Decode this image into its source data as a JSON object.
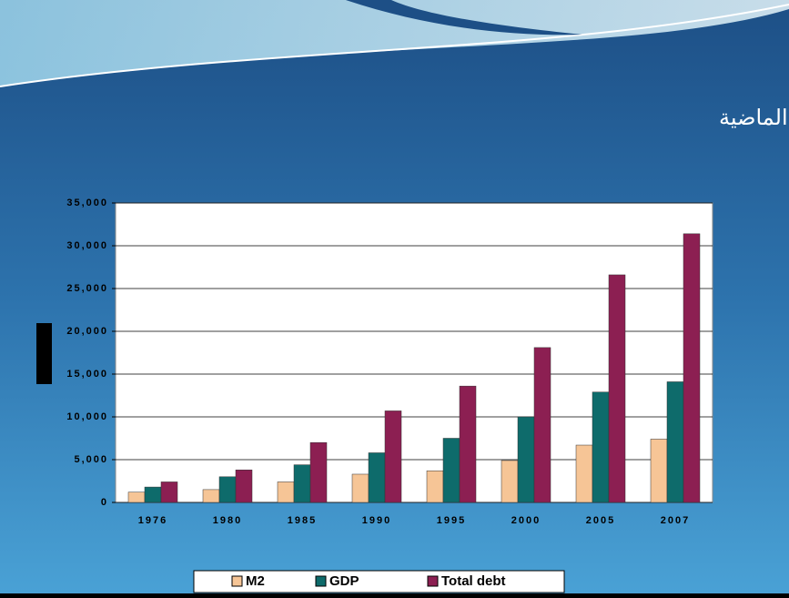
{
  "chart_data": {
    "type": "bar",
    "title": "تطور المديونية في الولايات المتحدة خلال الثلاثة عقود الماضية",
    "categories": [
      "1976",
      "1980",
      "1985",
      "1990",
      "1995",
      "2000",
      "2005",
      "2007"
    ],
    "series": [
      {
        "name": "M2",
        "color": "#f6c596",
        "values": [
          1200,
          1500,
          2400,
          3300,
          3700,
          4900,
          6700,
          7400
        ]
      },
      {
        "name": "GDP",
        "color": "#0e6b6b",
        "values": [
          1800,
          3000,
          4400,
          5800,
          7500,
          10000,
          12900,
          14100
        ]
      },
      {
        "name": "Total debt",
        "color": "#8c1f52",
        "values": [
          2400,
          3800,
          7000,
          10700,
          13600,
          18100,
          26600,
          31400
        ]
      }
    ],
    "ylim": [
      0,
      35000
    ],
    "yticks": [
      0,
      {
        "value": 5000,
        "label": "5,000"
      },
      {
        "value": 10000,
        "label": "10,000"
      },
      {
        "value": 15000,
        "label": "15,000"
      },
      {
        "value": 20000,
        "label": "20,000"
      },
      {
        "value": 25000,
        "label": "25,000"
      },
      {
        "value": 30000,
        "label": "30,000"
      },
      {
        "value": 35000,
        "label": "35,000"
      }
    ],
    "grid": true,
    "legend": "bottom"
  }
}
